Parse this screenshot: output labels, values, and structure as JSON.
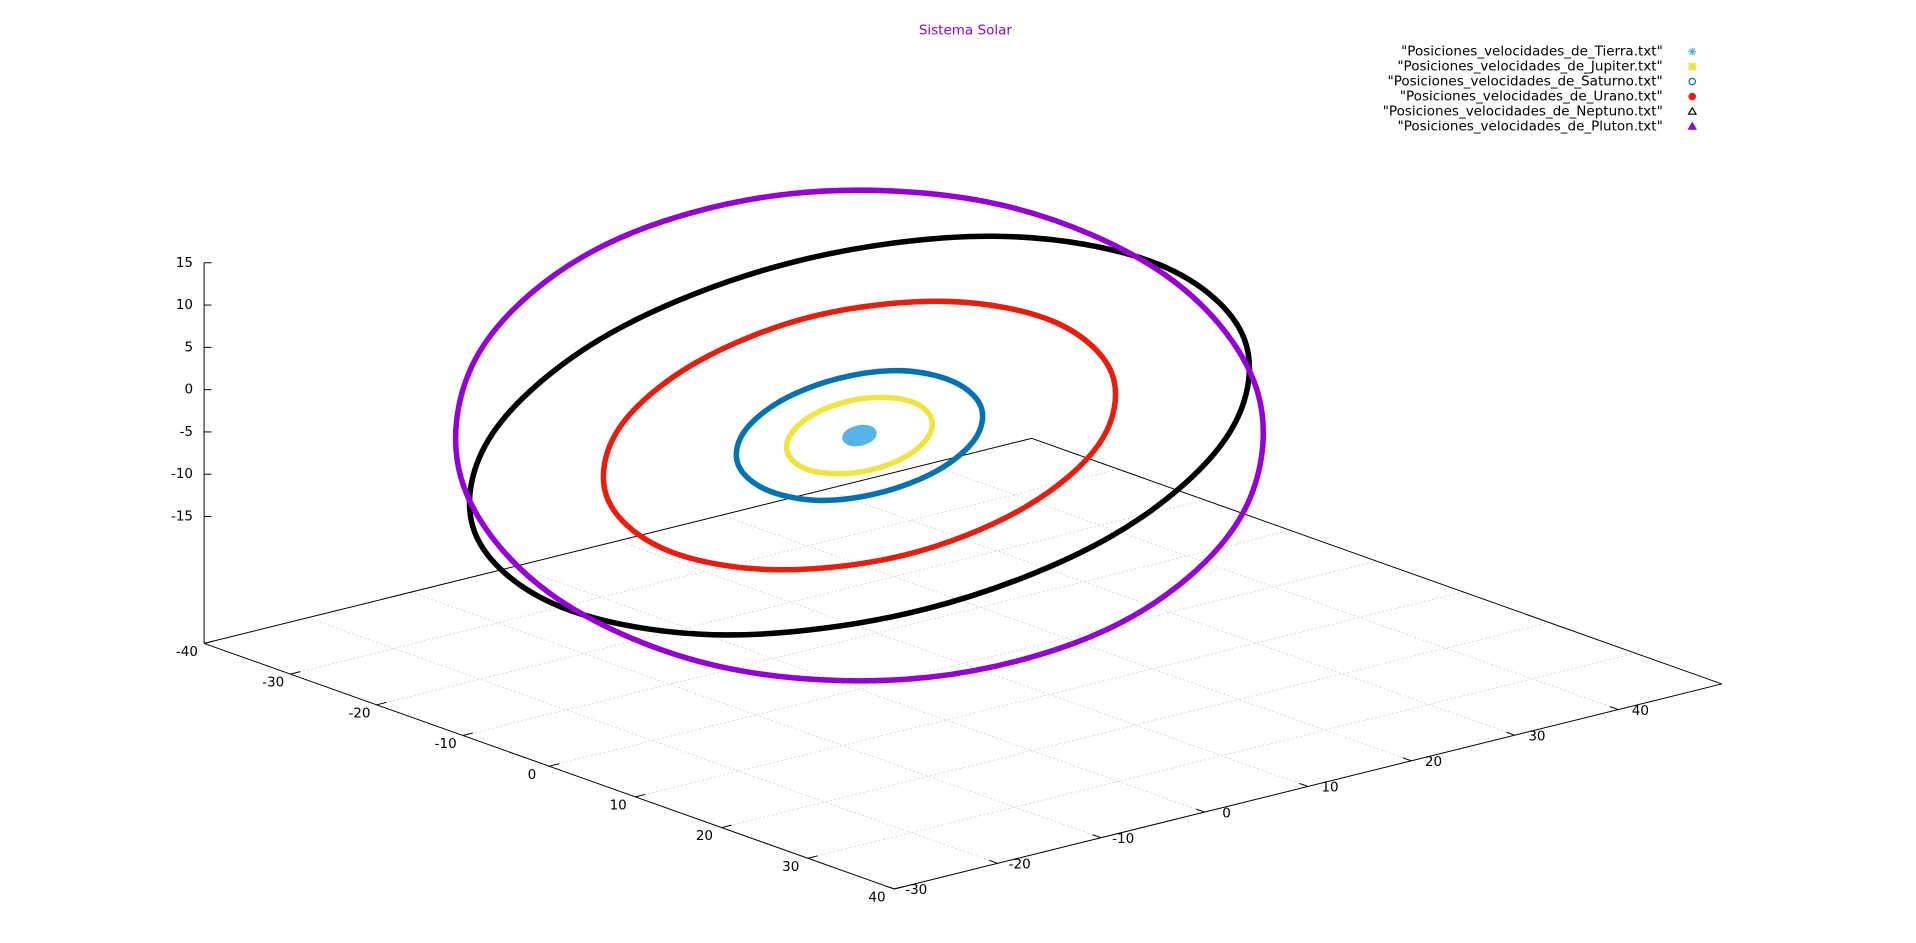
{
  "chart_data": {
    "type": "scatter3d",
    "title": "Sistema Solar",
    "title_color": "#9400d3",
    "xlim": [
      -40,
      40
    ],
    "xticks": [
      -40,
      -30,
      -20,
      -10,
      0,
      10,
      20,
      30,
      40
    ],
    "ylim": [
      -30,
      50
    ],
    "yticks": [
      -30,
      -20,
      -10,
      0,
      10,
      20,
      30,
      40
    ],
    "zlim": [
      -30,
      15
    ],
    "zticks": [
      -15,
      -10,
      -5,
      0,
      5,
      10,
      15
    ],
    "grid": true,
    "legend": "top-right",
    "series": [
      {
        "name": "\"Posiciones_velocidades_de_Tierra.txt\"",
        "color": "#56b4e9",
        "marker": "star",
        "x": [
          1,
          0.87,
          0.5,
          0,
          -0.5,
          -0.87,
          -1,
          -0.87,
          -0.5,
          0,
          0.5,
          0.87
        ],
        "y": [
          0,
          0.5,
          0.87,
          1,
          0.87,
          0.5,
          0,
          -0.5,
          -0.87,
          -1,
          -0.87,
          -0.5
        ],
        "z": [
          -0.09,
          0.12,
          0.3,
          0.4,
          0.39,
          0.28,
          0.09,
          -0.12,
          -0.3,
          -0.4,
          -0.39,
          -0.28
        ]
      },
      {
        "name": "\"Posiciones_velocidades_de_Jupiter.txt\"",
        "color": "#f0e442",
        "marker": "square",
        "x": [
          5.4,
          4.7,
          2.7,
          0,
          -2.7,
          -4.7,
          -5.4,
          -4.7,
          -2.7,
          0,
          2.7,
          4.7
        ],
        "y": [
          0,
          2.7,
          4.7,
          5.4,
          4.7,
          2.7,
          0,
          -2.7,
          -4.7,
          -5.4,
          -4.7,
          -2.7
        ],
        "z": [
          -0.5,
          0.7,
          1.6,
          2.2,
          2.1,
          1.5,
          0.5,
          -0.7,
          -1.6,
          -2.2,
          -2.1,
          -1.5
        ]
      },
      {
        "name": "\"Posiciones_velocidades_de_Saturno.txt\"",
        "color": "#0072b2",
        "marker": "open-circle",
        "x": [
          9.1,
          7.9,
          4.6,
          0,
          -4.6,
          -7.9,
          -9.1,
          -7.9,
          -4.6,
          0,
          4.6,
          7.9
        ],
        "y": [
          0,
          4.6,
          7.9,
          9.1,
          7.9,
          4.6,
          0,
          -4.6,
          -7.9,
          -9.1,
          -7.9,
          -4.6
        ],
        "z": [
          -0.8,
          1.1,
          2.7,
          3.6,
          3.6,
          2.5,
          0.8,
          -1.1,
          -2.7,
          -3.6,
          -3.6,
          -2.5
        ]
      },
      {
        "name": "\"Posiciones_velocidades_de_Urano.txt\"",
        "color": "#e51e10",
        "marker": "circle",
        "x": [
          19,
          16.5,
          9.5,
          0,
          -9.5,
          -16.5,
          -19,
          -16.5,
          -9.5,
          0,
          9.5,
          16.5
        ],
        "y": [
          0,
          9.5,
          16.5,
          19,
          16.5,
          9.5,
          0,
          -9.5,
          -16.5,
          -19,
          -16.5,
          -9.5
        ],
        "z": [
          -1.7,
          2.3,
          5.7,
          7.6,
          7.4,
          5.3,
          1.7,
          -2.3,
          -5.7,
          -7.6,
          -7.4,
          -5.3
        ]
      },
      {
        "name": "\"Posiciones_velocidades_de_Neptuno.txt\"",
        "color": "#000000",
        "marker": "open-triangle",
        "x": [
          29,
          25.1,
          14.5,
          0,
          -14.5,
          -25.1,
          -29,
          -25.1,
          -14.5,
          0,
          14.5,
          25.1
        ],
        "y": [
          0,
          14.5,
          25.1,
          29,
          25.1,
          14.5,
          0,
          -14.5,
          -25.1,
          -29,
          -25.1,
          -14.5
        ],
        "z": [
          -1.5,
          4.4,
          9.1,
          11.4,
          10.7,
          7,
          1.5,
          -4.4,
          -9.1,
          -11.4,
          -10.7,
          -7
        ]
      },
      {
        "name": "\"Posiciones_velocidades_de_Pluton.txt\"",
        "color": "#9400d3",
        "marker": "triangle",
        "x": [
          30,
          26,
          15,
          0,
          -15,
          -26,
          -30,
          -26,
          -15,
          0,
          15,
          26
        ],
        "y": [
          0,
          15,
          26,
          30,
          26,
          15,
          0,
          -15,
          -26,
          -30,
          -26,
          -15
        ],
        "z": [
          -11.4,
          -5.1,
          2.6,
          9.5,
          14,
          14.6,
          11.4,
          5.1,
          -2.6,
          -9.5,
          -14,
          -14.6
        ]
      }
    ]
  }
}
